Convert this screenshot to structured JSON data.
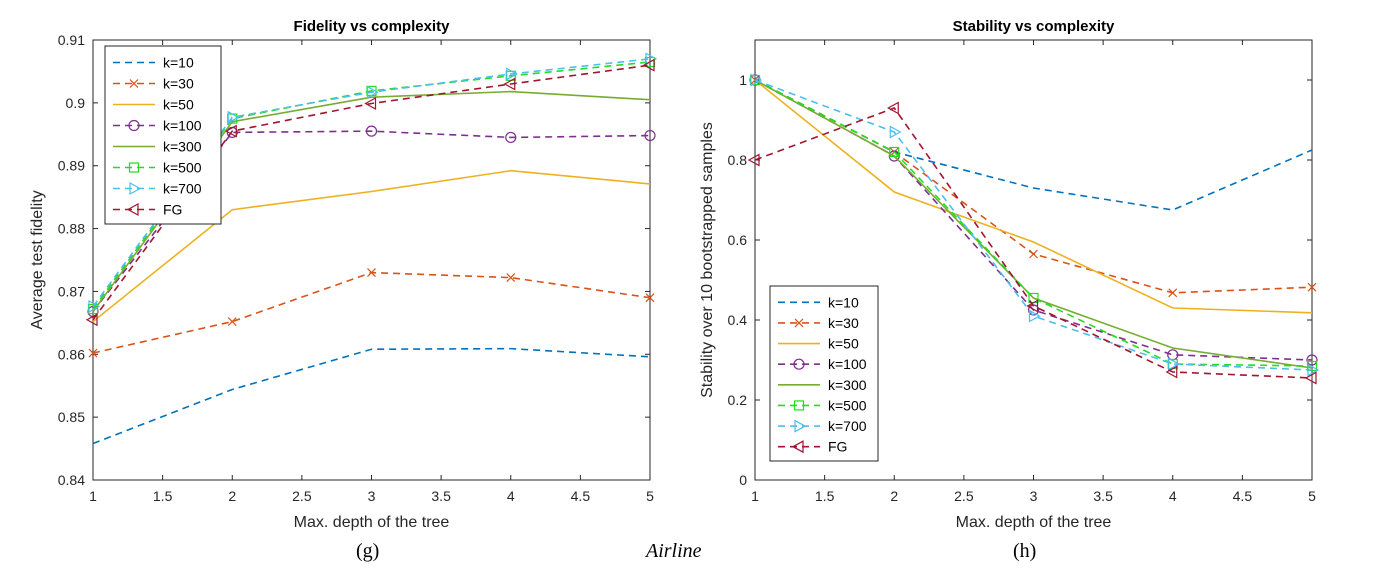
{
  "captions": {
    "left": "(g)",
    "center": "Airline",
    "right": "(h)"
  },
  "series_styles": [
    {
      "name": "k=10",
      "color": "#0072BD",
      "dash": "7,5",
      "marker": "none"
    },
    {
      "name": "k=30",
      "color": "#D95319",
      "dash": "7,5",
      "marker": "x"
    },
    {
      "name": "k=50",
      "color": "#EDB120",
      "dash": "",
      "marker": "none"
    },
    {
      "name": "k=100",
      "color": "#7E2F8E",
      "dash": "7,5",
      "marker": "circle"
    },
    {
      "name": "k=300",
      "color": "#77AC30",
      "dash": "",
      "marker": "none"
    },
    {
      "name": "k=500",
      "color": "#22DD22",
      "dash": "7,5",
      "marker": "square"
    },
    {
      "name": "k=700",
      "color": "#4DBEEE",
      "dash": "7,5",
      "marker": "triangle-right"
    },
    {
      "name": "FG",
      "color": "#A2142F",
      "dash": "7,5",
      "marker": "triangle-left"
    }
  ],
  "chart_data": [
    {
      "type": "line",
      "title": "Fidelity vs complexity",
      "xlabel": "Max. depth of the tree",
      "ylabel": "Average test fidelity",
      "xlim": [
        1,
        5
      ],
      "ylim": [
        0.84,
        0.91
      ],
      "xticks": [
        "1",
        "1.5",
        "2",
        "2.5",
        "3",
        "3.5",
        "4",
        "4.5",
        "5"
      ],
      "yticks": [
        "0.84",
        "0.85",
        "0.86",
        "0.87",
        "0.88",
        "0.89",
        "0.9",
        "0.91"
      ],
      "grid": false,
      "legend_position": "top-left",
      "x": [
        1,
        2,
        3,
        4,
        5
      ],
      "series": [
        {
          "name": "k=10",
          "values": [
            0.8458,
            0.8544,
            0.8608,
            0.8609,
            0.8596
          ]
        },
        {
          "name": "k=30",
          "values": [
            0.8602,
            0.8652,
            0.873,
            0.8722,
            0.869
          ]
        },
        {
          "name": "k=50",
          "values": [
            0.8652,
            0.883,
            0.8859,
            0.8892,
            0.8871
          ]
        },
        {
          "name": "k=100",
          "values": [
            0.8668,
            0.8953,
            0.8955,
            0.8945,
            0.8948
          ]
        },
        {
          "name": "k=300",
          "values": [
            0.8668,
            0.897,
            0.9009,
            0.9018,
            0.9005
          ]
        },
        {
          "name": "k=500",
          "values": [
            0.8672,
            0.8975,
            0.9019,
            0.9043,
            0.9065
          ]
        },
        {
          "name": "k=700",
          "values": [
            0.8676,
            0.8977,
            0.9017,
            0.9046,
            0.907
          ]
        },
        {
          "name": "FG",
          "values": [
            0.8655,
            0.8955,
            0.8999,
            0.903,
            0.906
          ]
        }
      ]
    },
    {
      "type": "line",
      "title": "Stability vs complexity",
      "xlabel": "Max. depth of the tree",
      "ylabel": "Stability over 10 bootstrapped samples",
      "xlim": [
        1,
        5
      ],
      "ylim": [
        0,
        1.1
      ],
      "xticks": [
        "1",
        "1.5",
        "2",
        "2.5",
        "3",
        "3.5",
        "4",
        "4.5",
        "5"
      ],
      "yticks": [
        "0",
        "0.2",
        "0.4",
        "0.6",
        "0.8",
        "1"
      ],
      "grid": false,
      "legend_position": "bottom-left",
      "x": [
        1,
        2,
        3,
        4,
        5
      ],
      "series": [
        {
          "name": "k=10",
          "values": [
            1.0,
            0.82,
            0.73,
            0.675,
            0.825
          ]
        },
        {
          "name": "k=30",
          "values": [
            1.0,
            0.82,
            0.565,
            0.468,
            0.482
          ]
        },
        {
          "name": "k=50",
          "values": [
            1.0,
            0.72,
            0.595,
            0.43,
            0.418
          ]
        },
        {
          "name": "k=100",
          "values": [
            1.0,
            0.81,
            0.425,
            0.313,
            0.3
          ]
        },
        {
          "name": "k=300",
          "values": [
            1.0,
            0.81,
            0.455,
            0.33,
            0.28
          ]
        },
        {
          "name": "k=500",
          "values": [
            1.0,
            0.82,
            0.455,
            0.29,
            0.285
          ]
        },
        {
          "name": "k=700",
          "values": [
            1.0,
            0.87,
            0.41,
            0.29,
            0.275
          ]
        },
        {
          "name": "FG",
          "values": [
            0.8,
            0.93,
            0.435,
            0.27,
            0.255
          ]
        }
      ]
    }
  ]
}
